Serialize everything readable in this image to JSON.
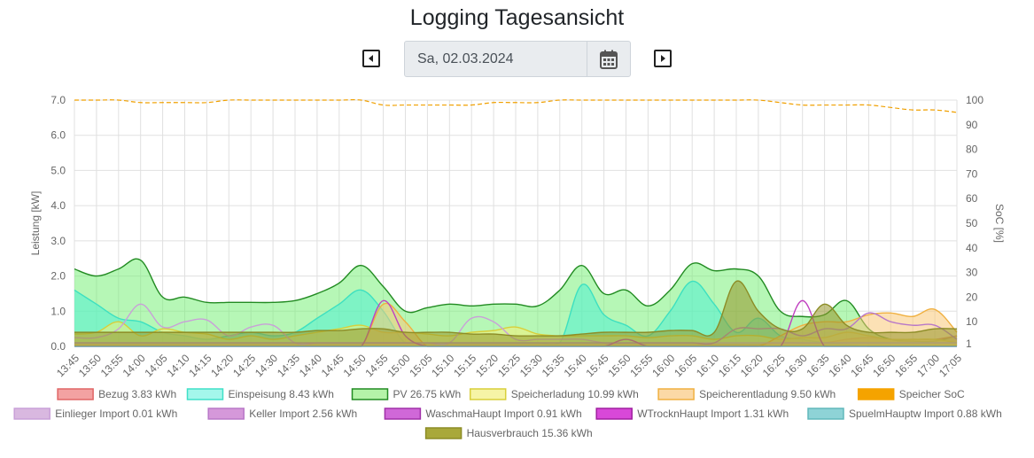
{
  "page": {
    "title": "Logging Tagesansicht"
  },
  "date_picker": {
    "value": "Sa, 02.03.2024"
  },
  "colors": {
    "axis_text": "#666666",
    "grid": "#e0e0e0",
    "axis_line": "#c8c8c8"
  },
  "chart_data": {
    "type": "area",
    "x": [
      "13:45",
      "13:50",
      "13:55",
      "14:00",
      "14:05",
      "14:10",
      "14:15",
      "14:20",
      "14:25",
      "14:30",
      "14:35",
      "14:40",
      "14:45",
      "14:50",
      "14:55",
      "15:00",
      "15:05",
      "15:10",
      "15:15",
      "15:20",
      "15:25",
      "15:30",
      "15:35",
      "15:40",
      "15:45",
      "15:50",
      "15:55",
      "16:00",
      "16:05",
      "16:10",
      "16:15",
      "16:20",
      "16:25",
      "16:30",
      "16:35",
      "16:40",
      "16:45",
      "16:50",
      "16:55",
      "17:00",
      "17:05"
    ],
    "ylabel": "Leistung [kW]",
    "ylim": [
      0,
      7
    ],
    "yticks": [
      "0.0",
      "1.0",
      "2.0",
      "3.0",
      "4.0",
      "5.0",
      "6.0",
      "7.0"
    ],
    "y2label": "SoC [%]",
    "y2lim": [
      0,
      100
    ],
    "y2ticks": [
      "1",
      "10",
      "20",
      "30",
      "40",
      "50",
      "60",
      "70",
      "80",
      "90",
      "100"
    ],
    "series": [
      {
        "name": "PV",
        "legend": "PV 26.75 kWh",
        "fill": "rgba(110,240,110,0.5)",
        "stroke": "#228b22",
        "values": [
          2.2,
          2.0,
          2.2,
          2.45,
          1.4,
          1.4,
          1.25,
          1.25,
          1.25,
          1.25,
          1.3,
          1.5,
          1.8,
          2.3,
          1.7,
          1.0,
          1.1,
          1.2,
          1.15,
          1.2,
          1.2,
          1.15,
          1.6,
          2.3,
          1.5,
          1.6,
          1.15,
          1.6,
          2.35,
          2.15,
          2.2,
          2.0,
          1.0,
          0.85,
          0.9,
          1.3,
          0.5,
          0.2,
          0.15,
          0.15,
          0.3
        ]
      },
      {
        "name": "Einspeisung",
        "legend": "Einspeisung 8.43 kWh",
        "fill": "rgba(80,240,210,0.55)",
        "stroke": "#3de0c0",
        "values": [
          1.6,
          1.2,
          0.8,
          0.7,
          0.4,
          0.3,
          0.2,
          0.3,
          0.4,
          0.3,
          0.4,
          0.8,
          1.2,
          1.6,
          1.0,
          0.1,
          0.1,
          0.1,
          0.1,
          0.1,
          0.1,
          0.1,
          0.1,
          1.75,
          0.9,
          0.6,
          0.3,
          1.0,
          1.85,
          1.2,
          0.4,
          0.8,
          0.3,
          0.2,
          0.1,
          0.05,
          0.0,
          0.0,
          0.0,
          0.0,
          0.0
        ]
      },
      {
        "name": "Bezug",
        "legend": "Bezug 3.83 kWh",
        "fill": "rgba(240,130,130,0.5)",
        "stroke": "#e06666",
        "values": [
          0.05,
          0.05,
          0.05,
          0.05,
          0.05,
          0.05,
          0.05,
          0.05,
          0.05,
          0.05,
          0.05,
          0.05,
          0.05,
          0.05,
          0.05,
          0.05,
          0.05,
          0.05,
          0.05,
          0.05,
          0.05,
          0.05,
          0.05,
          0.05,
          0.05,
          0.05,
          0.05,
          0.05,
          0.05,
          0.05,
          0.05,
          0.05,
          0.1,
          0.1,
          0.1,
          0.2,
          0.25,
          0.2,
          0.2,
          0.2,
          0.3
        ]
      },
      {
        "name": "Speicherladung",
        "legend": "Speicherladung 10.99 kWh",
        "fill": "rgba(245,240,120,0.55)",
        "stroke": "#d8cf3a",
        "values": [
          0.35,
          0.4,
          0.7,
          0.3,
          0.5,
          0.4,
          0.35,
          0.2,
          0.3,
          0.2,
          0.3,
          0.4,
          0.5,
          0.6,
          0.4,
          0.4,
          0.35,
          0.3,
          0.4,
          0.45,
          0.55,
          0.35,
          0.3,
          0.3,
          0.3,
          0.3,
          0.25,
          0.3,
          0.3,
          0.2,
          0.3,
          0.3,
          0.2,
          0.25,
          0.25,
          0.4,
          0.3,
          0.2,
          0.2,
          0.2,
          0.1
        ]
      },
      {
        "name": "Speicherentladung",
        "legend": "Speicherentladung 9.50 kWh",
        "fill": "rgba(250,200,120,0.55)",
        "stroke": "#f0b040",
        "values": [
          0.0,
          0.0,
          0.0,
          0.0,
          0.0,
          0.0,
          0.0,
          0.0,
          0.0,
          0.0,
          0.0,
          0.0,
          0.0,
          0.0,
          1.2,
          0.7,
          0.0,
          0.0,
          0.0,
          0.0,
          0.0,
          0.0,
          0.0,
          0.0,
          0.0,
          0.0,
          0.0,
          0.0,
          0.0,
          0.0,
          0.0,
          0.0,
          0.3,
          0.6,
          0.7,
          0.7,
          0.9,
          0.95,
          0.85,
          1.05,
          0.4
        ]
      },
      {
        "name": "Einlieger Import",
        "legend": "Einlieger Import 0.01 kWh",
        "fill": "none",
        "stroke": "#c9a0d8",
        "values": [
          0.25,
          0.25,
          0.5,
          1.2,
          0.55,
          0.7,
          0.75,
          0.3,
          0.55,
          0.6,
          0.1,
          0.1,
          0.1,
          0.1,
          0.1,
          0.1,
          0.1,
          0.1,
          0.8,
          0.7,
          0.2,
          0.2,
          0.2,
          0.2,
          0.1,
          0.1,
          0.1,
          0.1,
          0.1,
          0.1,
          0.1,
          0.1,
          0.1,
          0.1,
          0.1,
          0.1,
          0.1,
          0.1,
          0.1,
          0.1,
          0.1
        ]
      },
      {
        "name": "Keller Import",
        "legend": "Keller Import 2.56 kWh",
        "fill": "none",
        "stroke": "#b878c8",
        "values": [
          0.1,
          0.1,
          0.1,
          0.1,
          0.1,
          0.1,
          0.1,
          0.1,
          0.1,
          0.1,
          0.1,
          0.1,
          0.1,
          0.1,
          0.1,
          0.1,
          0.1,
          0.1,
          0.1,
          0.1,
          0.1,
          0.1,
          0.1,
          0.1,
          0.1,
          0.1,
          0.1,
          0.1,
          0.1,
          0.1,
          0.5,
          0.5,
          0.5,
          0.3,
          0.5,
          0.5,
          0.95,
          0.7,
          0.6,
          0.6,
          0.2
        ]
      },
      {
        "name": "WaschmaHaupt Import",
        "legend": "WaschmaHaupt Import 0.91 kWh",
        "fill": "none",
        "stroke": "#c040c0",
        "values": [
          0.0,
          0.0,
          0.0,
          0.0,
          0.0,
          0.0,
          0.0,
          0.0,
          0.0,
          0.0,
          0.0,
          0.0,
          0.0,
          0.0,
          1.3,
          0.3,
          0.0,
          0.0,
          0.0,
          0.0,
          0.0,
          0.0,
          0.0,
          0.0,
          0.0,
          0.2,
          0.0,
          0.0,
          0.0,
          0.0,
          0.0,
          0.0,
          0.0,
          1.3,
          0.0,
          0.0,
          0.0,
          0.0,
          0.0,
          0.0,
          0.0
        ]
      },
      {
        "name": "WTrocknHaupt Import",
        "legend": "WTrocknHaupt Import 1.31 kWh",
        "fill": "none",
        "stroke": "#d030d0",
        "values": [
          0.0,
          0.0,
          0.0,
          0.0,
          0.0,
          0.0,
          0.0,
          0.0,
          0.0,
          0.0,
          0.0,
          0.0,
          0.0,
          0.0,
          0.0,
          0.0,
          0.0,
          0.0,
          0.0,
          0.0,
          0.0,
          0.0,
          0.0,
          0.0,
          0.0,
          0.0,
          0.0,
          0.0,
          0.0,
          0.0,
          0.0,
          0.0,
          0.0,
          0.0,
          0.0,
          0.0,
          0.0,
          0.0,
          0.0,
          0.0,
          0.0
        ]
      },
      {
        "name": "SpuelmHauptw Import",
        "legend": "SpuelmHauptw Import 0.88 kWh",
        "fill": "none",
        "stroke": "#70c8c8",
        "values": [
          0.0,
          0.0,
          0.0,
          0.0,
          0.0,
          0.0,
          0.0,
          0.0,
          0.0,
          0.0,
          0.0,
          0.0,
          0.0,
          0.0,
          0.0,
          0.0,
          0.0,
          0.0,
          0.0,
          0.0,
          0.0,
          0.0,
          0.0,
          0.0,
          0.0,
          0.0,
          0.0,
          0.0,
          0.0,
          0.0,
          0.0,
          0.0,
          0.0,
          0.0,
          0.0,
          0.0,
          0.0,
          0.0,
          0.0,
          0.0,
          0.0
        ]
      },
      {
        "name": "Hausverbrauch",
        "legend": "Hausverbrauch 15.36 kWh",
        "fill": "rgba(150,150,40,0.55)",
        "stroke": "#8c8c26",
        "values": [
          0.4,
          0.4,
          0.4,
          0.4,
          0.4,
          0.4,
          0.4,
          0.4,
          0.4,
          0.4,
          0.4,
          0.45,
          0.45,
          0.5,
          0.5,
          0.4,
          0.4,
          0.4,
          0.35,
          0.35,
          0.3,
          0.3,
          0.3,
          0.35,
          0.4,
          0.4,
          0.4,
          0.45,
          0.45,
          0.4,
          1.85,
          1.0,
          0.5,
          0.5,
          1.2,
          0.6,
          0.4,
          0.4,
          0.4,
          0.5,
          0.5
        ]
      },
      {
        "name": "Speicher SoC",
        "legend": "Speicher SoC",
        "axis": "right",
        "fill": "none",
        "stroke": "#f0a000",
        "dash": true,
        "values": [
          100,
          100,
          100,
          99,
          99,
          99,
          99,
          100,
          100,
          100,
          100,
          100,
          100,
          100,
          98,
          98,
          98,
          98,
          98,
          99,
          99,
          99,
          100,
          100,
          100,
          100,
          100,
          100,
          100,
          100,
          100,
          100,
          99,
          98,
          98,
          98,
          98,
          97,
          96,
          96,
          95
        ]
      }
    ],
    "legend_rows": [
      [
        {
          "label": "Bezug 3.83 kWh",
          "fill": "#f3a2a2",
          "border": "#e06666"
        },
        {
          "label": "Einspeisung 8.43 kWh",
          "fill": "#a4f7eb",
          "border": "#40e0c8"
        },
        {
          "label": "PV 26.75 kWh",
          "fill": "#b5f3a8",
          "border": "#228b22"
        },
        {
          "label": "Speicherladung 10.99 kWh",
          "fill": "#f6f4a6",
          "border": "#d8cf3a"
        },
        {
          "label": "Speicherentladung 9.50 kWh",
          "fill": "#fbd9a6",
          "border": "#f0b040"
        },
        {
          "label": "Speicher SoC",
          "fill": "#f5a300",
          "border": "#f5a300"
        }
      ],
      [
        {
          "label": "Einlieger Import 0.01 kWh",
          "fill": "#d9b8e0",
          "border": "#c9a0d8"
        },
        {
          "label": "Keller Import 2.56 kWh",
          "fill": "#d598da",
          "border": "#b878c8"
        },
        {
          "label": "WaschmaHaupt Import 0.91 kWh",
          "fill": "#d068d8",
          "border": "#a030a8"
        },
        {
          "label": "WTrocknHaupt Import 1.31 kWh",
          "fill": "#d848d8",
          "border": "#a020a0"
        },
        {
          "label": "SpuelmHauptw Import 0.88 kWh",
          "fill": "#8ed3d6",
          "border": "#60b8bc"
        }
      ],
      [
        {
          "label": "Hausverbrauch 15.36 kWh",
          "fill": "#a9a83a",
          "border": "#8c8c26"
        }
      ]
    ]
  }
}
